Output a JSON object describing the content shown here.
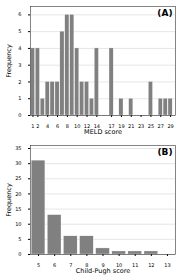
{
  "chart_data": [
    {
      "type": "bar",
      "title": "(A)",
      "xlabel": "MELD score",
      "ylabel": "Frequency",
      "x": [
        1,
        2,
        3,
        4,
        5,
        6,
        7,
        8,
        9,
        10,
        11,
        12,
        13,
        14,
        15,
        16,
        17,
        18,
        19,
        20,
        21,
        22,
        23,
        24,
        25,
        26,
        27,
        28,
        29
      ],
      "values": [
        4,
        4,
        1,
        2,
        2,
        2,
        5,
        6,
        6,
        4,
        2,
        2,
        1,
        4,
        0,
        0,
        4,
        0,
        1,
        0,
        1,
        0,
        0,
        0,
        2,
        0,
        1,
        1,
        1
      ],
      "color": "#808080",
      "xlim": [
        0.5,
        30
      ],
      "xticks": [
        1,
        2,
        4,
        6,
        8,
        10,
        12,
        14,
        17,
        19,
        21,
        23,
        25,
        27,
        29
      ],
      "ylim": [
        0,
        6.5
      ],
      "yticks": [
        0,
        1,
        2,
        3,
        4,
        5,
        6
      ],
      "grid": true
    },
    {
      "type": "bar",
      "title": "(B)",
      "xlabel": "Child-Pugh score",
      "ylabel": "Frequency",
      "x": [
        5,
        6,
        7,
        8,
        9,
        10,
        11,
        12,
        13
      ],
      "values": [
        31,
        13,
        6,
        6,
        2,
        1,
        1,
        1,
        0
      ],
      "color": "#808080",
      "xlim": [
        4.5,
        13.5
      ],
      "xticks": [
        5,
        6,
        7,
        8,
        9,
        10,
        11,
        12,
        13
      ],
      "ylim": [
        0,
        36
      ],
      "yticks": [
        0,
        5,
        10,
        15,
        20,
        25,
        30,
        35
      ],
      "grid": true
    }
  ]
}
